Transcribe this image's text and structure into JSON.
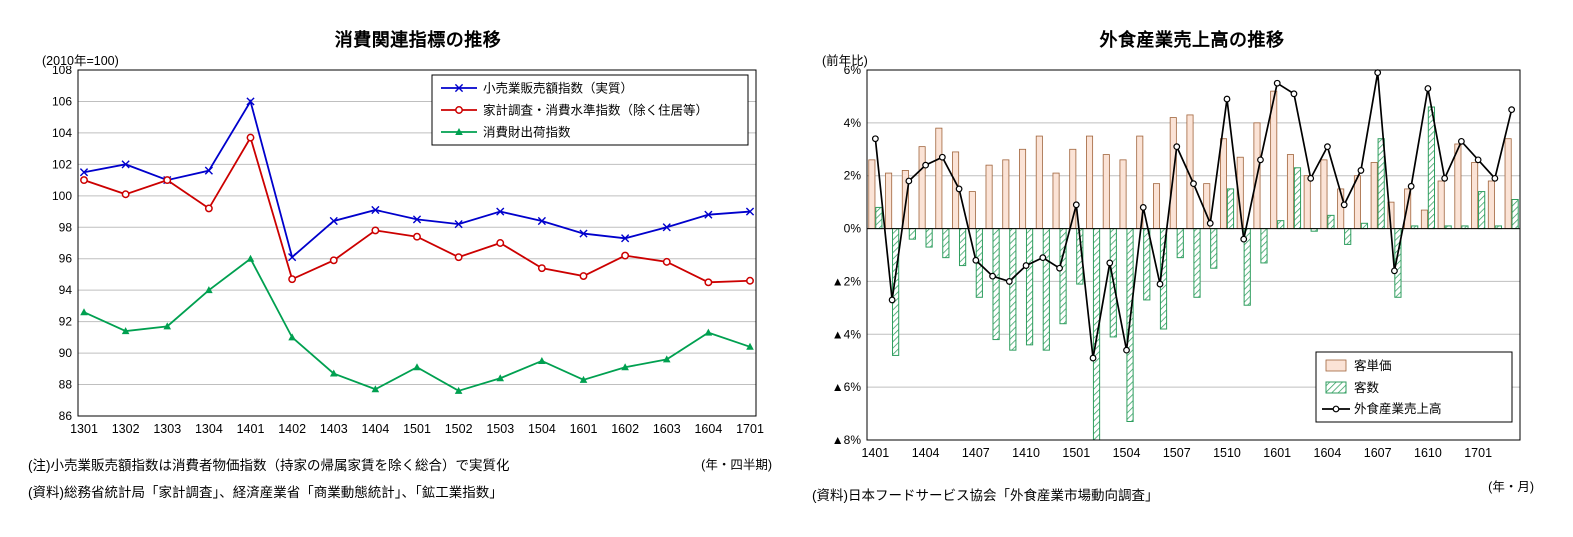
{
  "chart_data": [
    {
      "type": "line",
      "title": "消費関連指標の推移",
      "unit_label": "(2010年=100)",
      "x_axis_unit": "(年・四半期)",
      "ylim": [
        86,
        108
      ],
      "ytick_step": 2,
      "grid": true,
      "legend_position": "top-right-inside",
      "categories": [
        "1301",
        "1302",
        "1303",
        "1304",
        "1401",
        "1402",
        "1403",
        "1404",
        "1501",
        "1502",
        "1503",
        "1504",
        "1601",
        "1602",
        "1603",
        "1604",
        "1701"
      ],
      "series": [
        {
          "name": "小売業販売額指数（実質）",
          "color": "#0000CC",
          "marker": "x",
          "values": [
            101.5,
            102.0,
            101.0,
            101.6,
            106.0,
            96.1,
            98.4,
            99.1,
            98.5,
            98.2,
            99.0,
            98.4,
            97.6,
            97.3,
            98.0,
            98.8,
            99.0
          ]
        },
        {
          "name": "家計調査・消費水準指数（除く住居等）",
          "color": "#CC0000",
          "marker": "circle",
          "values": [
            101.0,
            100.1,
            101.0,
            99.2,
            103.7,
            94.7,
            95.9,
            97.8,
            97.4,
            96.1,
            97.0,
            95.4,
            94.9,
            96.2,
            95.8,
            94.5,
            94.6
          ]
        },
        {
          "name": "消費財出荷指数",
          "color": "#00A050",
          "marker": "triangle",
          "values": [
            92.6,
            91.4,
            91.7,
            94.0,
            96.0,
            91.0,
            88.7,
            87.7,
            89.1,
            87.6,
            88.4,
            89.5,
            88.3,
            89.1,
            89.6,
            91.3,
            90.4
          ]
        }
      ],
      "notes": [
        "(注)小売業販売額指数は消費者物価指数（持家の帰属家賃を除く総合）で実質化",
        "(資料)総務省統計局「家計調査」、経済産業省「商業動態統計」、「鉱工業指数」"
      ]
    },
    {
      "type": "bar+line",
      "title": "外食産業売上高の推移",
      "unit_label": "(前年比)",
      "x_axis_unit": "(年・月)",
      "ylim": [
        -8,
        6
      ],
      "ytick_step": 2,
      "xtick_every": 3,
      "grid": true,
      "legend_position": "bottom-right-inside",
      "colors": {
        "price_fill": "#FBE3D6",
        "price_stroke": "#A0643C",
        "count_hatch": "#2F9E5F",
        "line": "#000000"
      },
      "categories": [
        "1401",
        "1402",
        "1403",
        "1404",
        "1405",
        "1406",
        "1407",
        "1408",
        "1409",
        "1410",
        "1411",
        "1412",
        "1501",
        "1502",
        "1503",
        "1504",
        "1505",
        "1506",
        "1507",
        "1508",
        "1509",
        "1510",
        "1511",
        "1512",
        "1601",
        "1602",
        "1603",
        "1604",
        "1605",
        "1606",
        "1607",
        "1608",
        "1609",
        "1610",
        "1611",
        "1612",
        "1701",
        "1702",
        "1703"
      ],
      "bar_series": [
        {
          "name": "客単価",
          "style": "pink",
          "values": [
            2.6,
            2.1,
            2.2,
            3.1,
            3.8,
            2.9,
            1.4,
            2.4,
            2.6,
            3.0,
            3.5,
            2.1,
            3.0,
            3.5,
            2.8,
            2.6,
            3.5,
            1.7,
            4.2,
            4.3,
            1.7,
            3.4,
            2.7,
            4.0,
            5.2,
            2.8,
            2.0,
            2.6,
            1.5,
            2.0,
            2.5,
            1.0,
            1.5,
            0.7,
            1.8,
            3.2,
            2.5,
            1.8,
            3.4
          ]
        },
        {
          "name": "客数",
          "style": "green-hatch",
          "values": [
            0.8,
            -4.8,
            -0.4,
            -0.7,
            -1.1,
            -1.4,
            -2.6,
            -4.2,
            -4.6,
            -4.4,
            -4.6,
            -3.6,
            -2.1,
            -8.0,
            -4.1,
            -7.3,
            -2.7,
            -3.8,
            -1.1,
            -2.6,
            -1.5,
            1.5,
            -2.9,
            -1.3,
            0.3,
            2.3,
            -0.1,
            0.5,
            -0.6,
            0.2,
            3.4,
            -2.6,
            0.1,
            4.6,
            0.1,
            0.1,
            1.4,
            0.1,
            1.1
          ]
        }
      ],
      "line_series": {
        "name": "外食産業売上高",
        "marker": "open-circle",
        "values": [
          3.4,
          -2.7,
          1.8,
          2.4,
          2.7,
          1.5,
          -1.2,
          -1.8,
          -2.0,
          -1.4,
          -1.1,
          -1.5,
          0.9,
          -4.9,
          -1.3,
          -4.6,
          0.8,
          -2.1,
          3.1,
          1.7,
          0.2,
          4.9,
          -0.4,
          2.6,
          5.5,
          5.1,
          1.9,
          3.1,
          0.9,
          2.2,
          5.9,
          -1.6,
          1.6,
          5.3,
          1.9,
          3.3,
          2.6,
          1.9,
          4.5
        ]
      },
      "note": "(資料)日本フードサービス協会「外食産業市場動向調査」"
    }
  ]
}
